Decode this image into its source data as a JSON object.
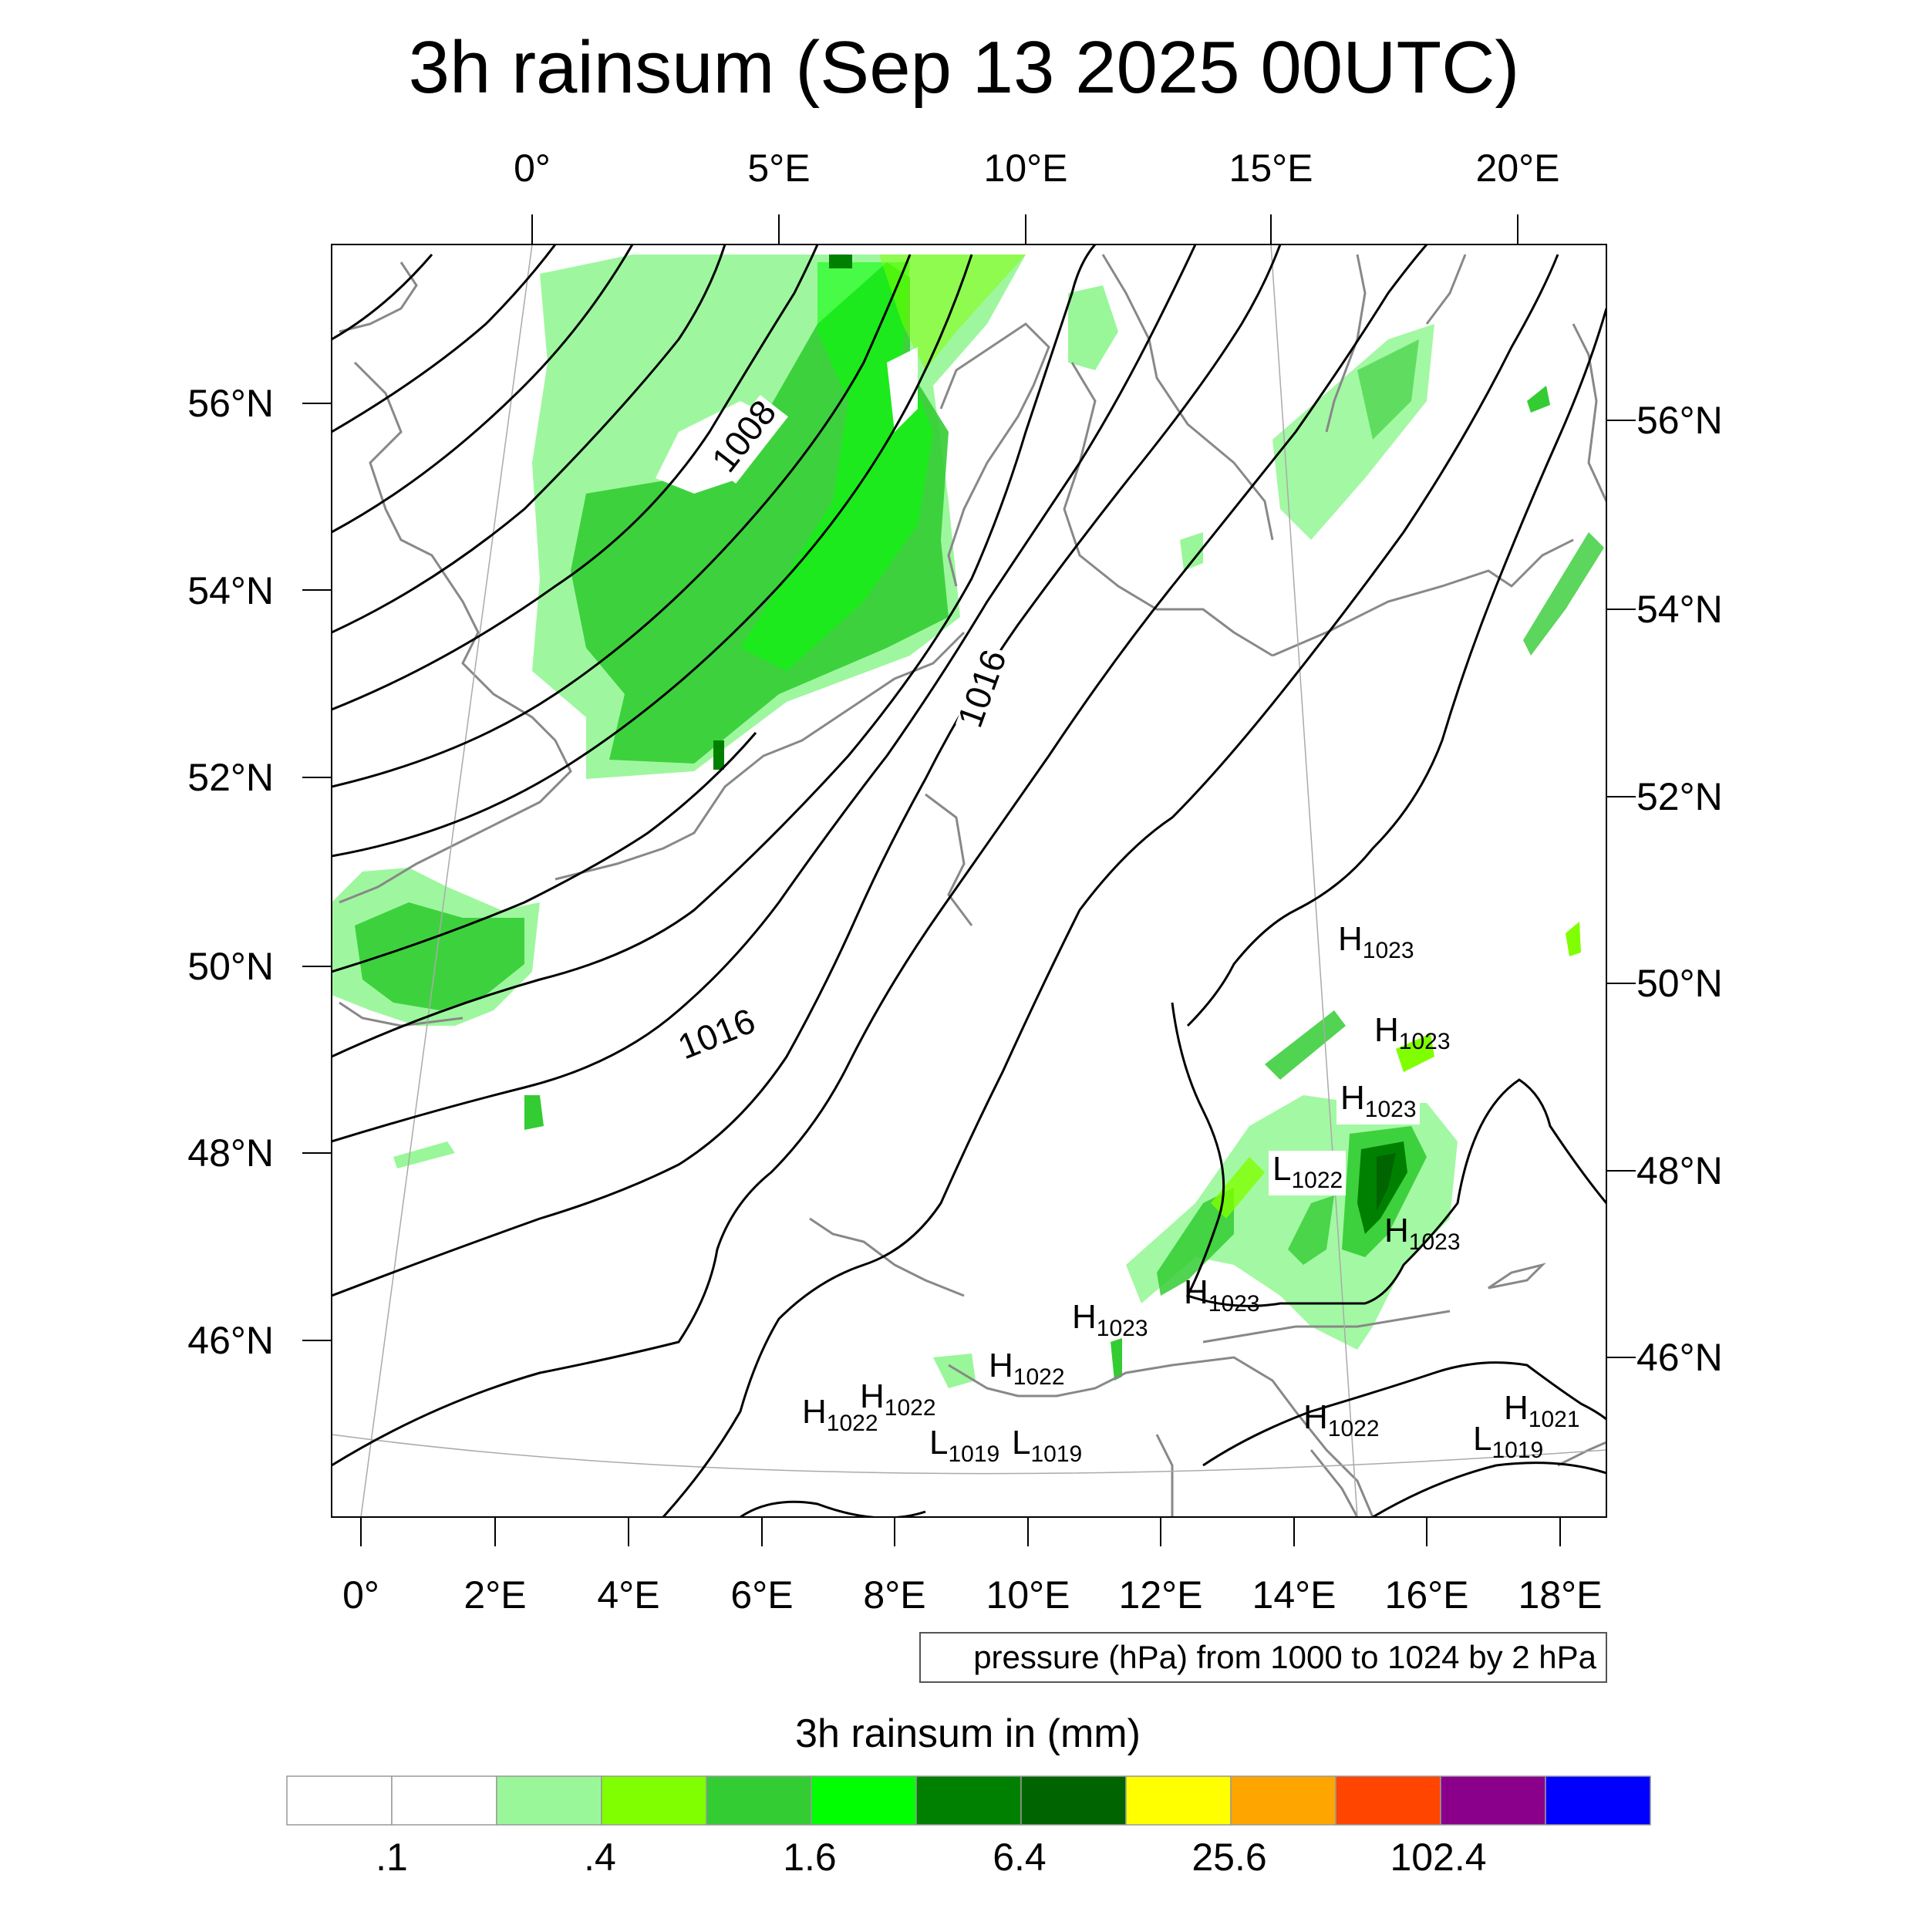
{
  "title": "3h rainsum (Sep 13 2025 00UTC)",
  "top_lon_ticks": [
    "0°",
    "5°E",
    "10°E",
    "15°E",
    "20°E"
  ],
  "bottom_lon_ticks": [
    "0°",
    "2°E",
    "4°E",
    "6°E",
    "8°E",
    "10°E",
    "12°E",
    "14°E",
    "16°E",
    "18°E"
  ],
  "left_lat_ticks": [
    "56°N",
    "54°N",
    "52°N",
    "50°N",
    "48°N",
    "46°N"
  ],
  "right_lat_ticks": [
    "56°N",
    "54°N",
    "52°N",
    "50°N",
    "48°N",
    "46°N"
  ],
  "contour_labels": [
    "1008",
    "1016",
    "1016"
  ],
  "pressure_centers": [
    {
      "type": "H",
      "value": "1023"
    },
    {
      "type": "H",
      "value": "1023"
    },
    {
      "type": "H",
      "value": "1023"
    },
    {
      "type": "L",
      "value": "1022"
    },
    {
      "type": "H",
      "value": "1023"
    },
    {
      "type": "H",
      "value": "1023"
    },
    {
      "type": "H",
      "value": "1023"
    },
    {
      "type": "H",
      "value": "1022"
    },
    {
      "type": "H",
      "value": "1022"
    },
    {
      "type": "H",
      "value": "1022"
    },
    {
      "type": "L",
      "value": "1019"
    },
    {
      "type": "L",
      "value": "1019"
    },
    {
      "type": "H",
      "value": "1022"
    },
    {
      "type": "H",
      "value": "1021"
    },
    {
      "type": "L",
      "value": "1019"
    }
  ],
  "pressure_note": "pressure (hPa) from 1000 to 1024 by 2 hPa",
  "colorbar": {
    "title": "3h rainsum in (mm)",
    "colors": [
      "#ffffff",
      "#ffffff",
      "#99f799",
      "#80ff00",
      "#33cc33",
      "#00ff00",
      "#008000",
      "#006400",
      "#ffff00",
      "#ffa500",
      "#ff4500",
      "#8b008b",
      "#0000ff"
    ],
    "labels": [
      ".1",
      ".4",
      "1.6",
      "6.4",
      "25.6",
      "102.4"
    ]
  },
  "rain_colors": {
    "light": "#99f799",
    "lime": "#80ff00",
    "mid": "#33cc33",
    "bright": "#00ff00",
    "dark": "#008000",
    "darker": "#006400"
  }
}
